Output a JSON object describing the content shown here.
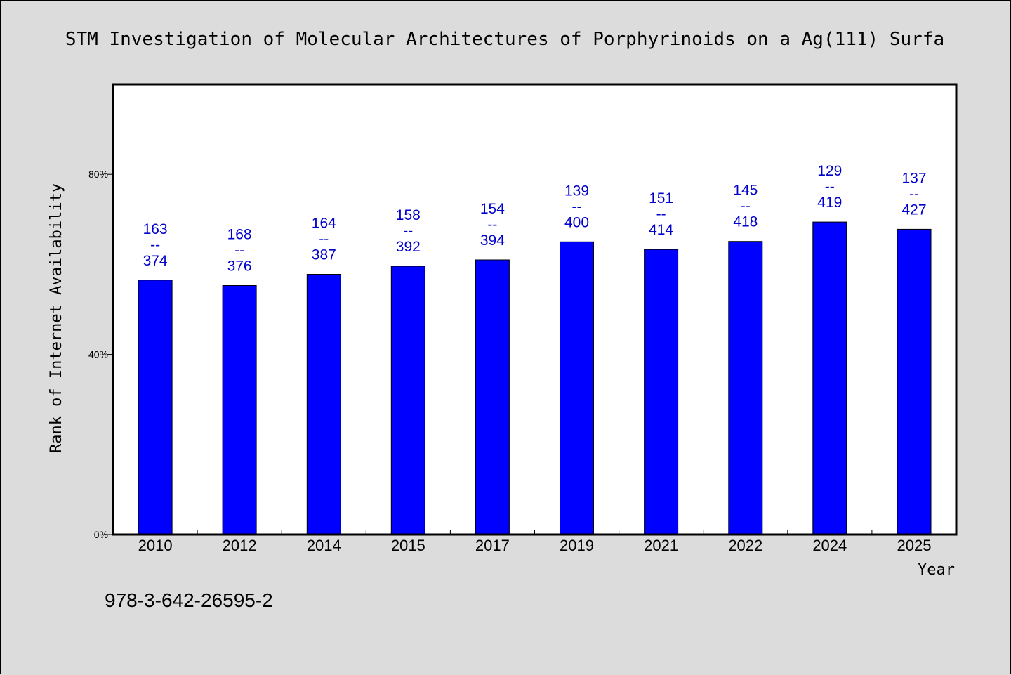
{
  "chart_data": {
    "type": "bar",
    "title": "STM Investigation of Molecular Architectures of Porphyrinoids on a Ag(111) Surfa",
    "xlabel": "Year",
    "ylabel": "Rank of Internet Availability",
    "categories": [
      "2010",
      "2012",
      "2014",
      "2015",
      "2017",
      "2019",
      "2021",
      "2022",
      "2024",
      "2025"
    ],
    "values": [
      56.5,
      55.3,
      57.8,
      59.6,
      61.0,
      65.0,
      63.3,
      65.1,
      69.4,
      67.8
    ],
    "data_labels": [
      [
        "163",
        "--",
        "374"
      ],
      [
        "168",
        "--",
        "376"
      ],
      [
        "164",
        "--",
        "387"
      ],
      [
        "158",
        "--",
        "392"
      ],
      [
        "154",
        "--",
        "394"
      ],
      [
        "139",
        "--",
        "400"
      ],
      [
        "151",
        "--",
        "414"
      ],
      [
        "145",
        "--",
        "418"
      ],
      [
        "129",
        "--",
        "419"
      ],
      [
        "137",
        "--",
        "427"
      ]
    ],
    "yticks": [
      0,
      40,
      80
    ],
    "ytick_labels": [
      "0%",
      "40%",
      "80%"
    ],
    "ylim": [
      0,
      100
    ],
    "bar_color": "#0000ff",
    "label_color": "#0000cc",
    "grid": false,
    "legend": "none"
  },
  "footnote": "978-3-642-26595-2"
}
